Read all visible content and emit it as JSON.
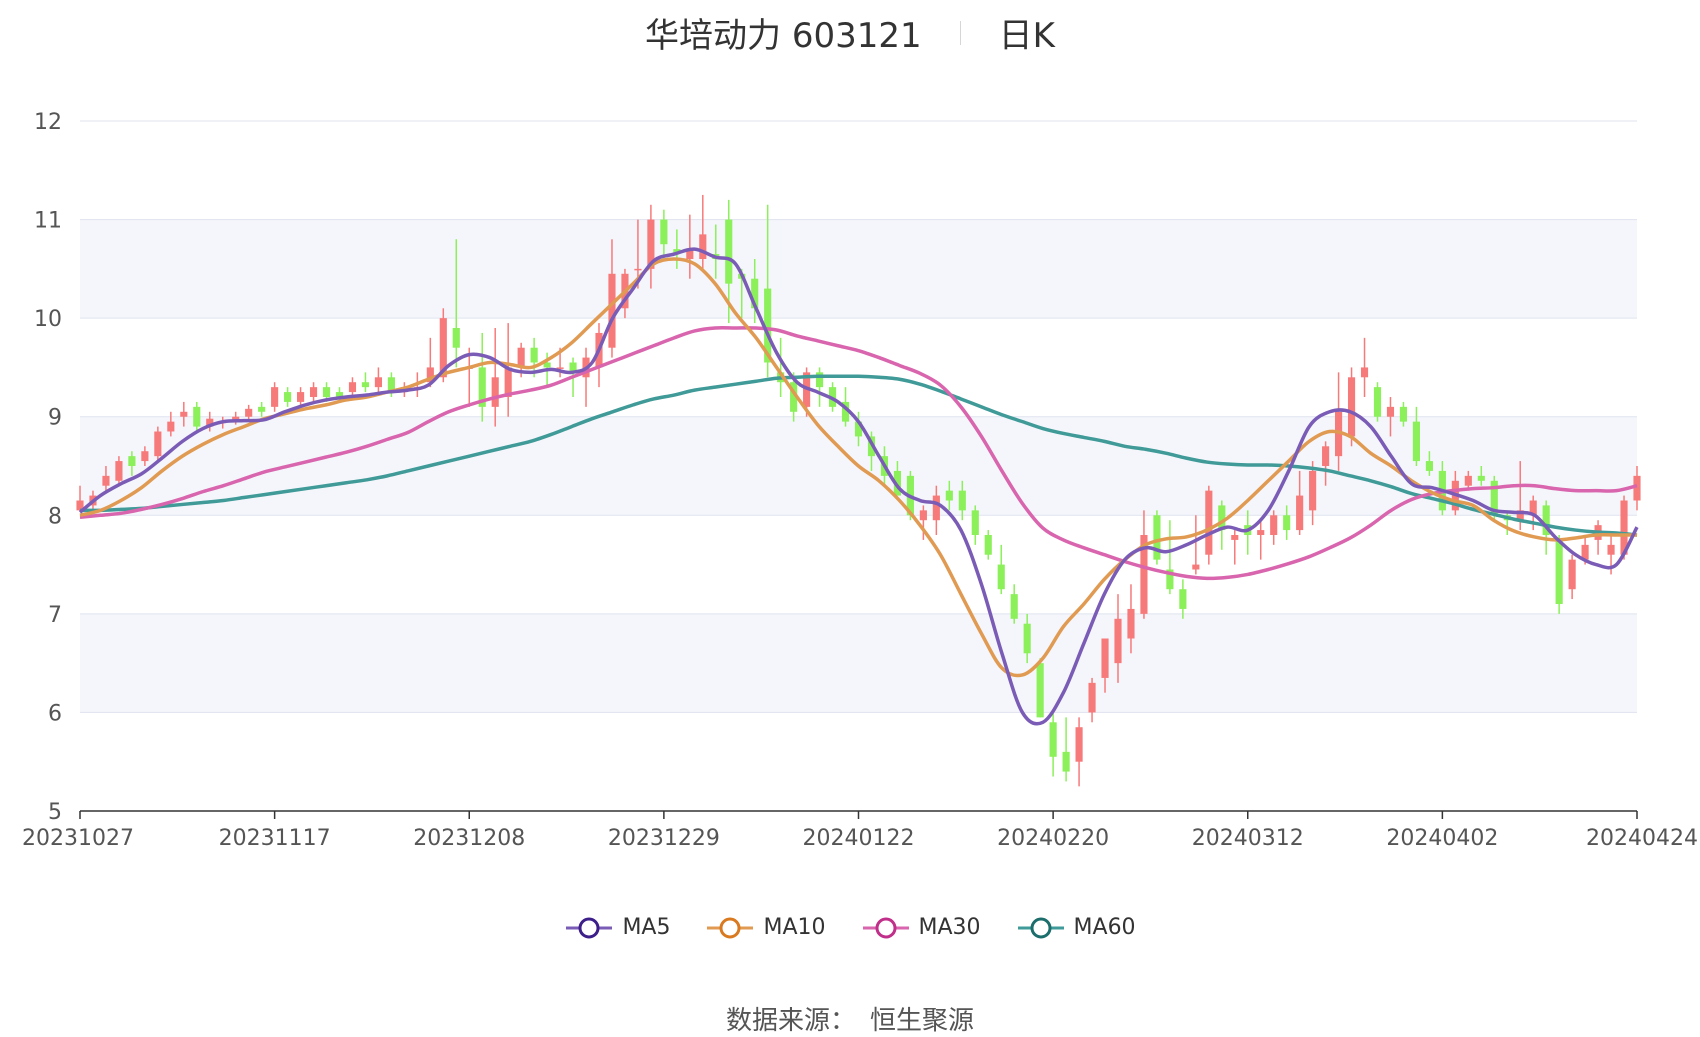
{
  "header": {
    "title": "华培动力 603121",
    "period": "日K"
  },
  "source": {
    "label": "数据来源：",
    "value": "恒生聚源"
  },
  "colors": {
    "up": "#f77a7a",
    "down": "#8bf05a",
    "MA5": "#7a5cb6",
    "MA10": "#e09a52",
    "MA30": "#d865ad",
    "MA60": "#3f9a98"
  },
  "chart_data": {
    "type": "candlestick",
    "ylim": [
      5,
      12
    ],
    "yticks": [
      5,
      6,
      7,
      8,
      9,
      10,
      11,
      12
    ],
    "xticks": [
      "20231027",
      "20231117",
      "20231208",
      "20231229",
      "20240122",
      "20240220",
      "20240312",
      "20240402",
      "20240424"
    ],
    "grid": true,
    "legend": "bottom-center",
    "series": [
      {
        "name": "MA5",
        "values": [
          8.03,
          8.2,
          8.32,
          8.42,
          8.58,
          8.75,
          8.88,
          8.95,
          8.96,
          8.97,
          9.05,
          9.12,
          9.17,
          9.2,
          9.22,
          9.25,
          9.27,
          9.32,
          9.52,
          9.63,
          9.6,
          9.48,
          9.45,
          9.48,
          9.45,
          9.55,
          10.0,
          10.3,
          10.58,
          10.65,
          10.7,
          10.62,
          10.55,
          10.1,
          9.65,
          9.35,
          9.25,
          9.15,
          8.95,
          8.6,
          8.27,
          8.15,
          8.1,
          7.85,
          7.3,
          6.6,
          6.0,
          5.9,
          6.2,
          6.7,
          7.2,
          7.55,
          7.67,
          7.63,
          7.7,
          7.8,
          7.88,
          7.85,
          8.05,
          8.45,
          8.9,
          9.05,
          9.05,
          8.9,
          8.6,
          8.32,
          8.28,
          8.22,
          8.15,
          8.05,
          8.03,
          8.0,
          7.78,
          7.6,
          7.5,
          7.5,
          7.88
        ]
      },
      {
        "name": "MA10",
        "values": [
          8.0,
          8.05,
          8.15,
          8.28,
          8.45,
          8.6,
          8.72,
          8.82,
          8.9,
          8.98,
          9.03,
          9.08,
          9.12,
          9.17,
          9.2,
          9.25,
          9.3,
          9.38,
          9.45,
          9.5,
          9.55,
          9.53,
          9.5,
          9.6,
          9.75,
          9.95,
          10.15,
          10.35,
          10.55,
          10.6,
          10.55,
          10.35,
          10.05,
          9.8,
          9.5,
          9.2,
          8.92,
          8.7,
          8.5,
          8.35,
          8.15,
          7.9,
          7.6,
          7.2,
          6.8,
          6.45,
          6.38,
          6.55,
          6.87,
          7.1,
          7.35,
          7.55,
          7.7,
          7.76,
          7.78,
          7.85,
          7.97,
          8.15,
          8.35,
          8.55,
          8.75,
          8.85,
          8.8,
          8.63,
          8.5,
          8.35,
          8.23,
          8.15,
          8.1,
          7.95,
          7.84,
          7.78,
          7.75,
          7.77,
          7.8,
          7.8,
          7.8
        ]
      },
      {
        "name": "MA30",
        "values": [
          7.98,
          8.0,
          8.02,
          8.06,
          8.11,
          8.17,
          8.24,
          8.3,
          8.37,
          8.44,
          8.49,
          8.54,
          8.59,
          8.64,
          8.7,
          8.77,
          8.84,
          8.95,
          9.05,
          9.12,
          9.18,
          9.23,
          9.27,
          9.32,
          9.4,
          9.48,
          9.56,
          9.64,
          9.72,
          9.8,
          9.87,
          9.9,
          9.9,
          9.9,
          9.88,
          9.82,
          9.77,
          9.72,
          9.67,
          9.6,
          9.52,
          9.44,
          9.32,
          9.1,
          8.8,
          8.45,
          8.12,
          7.87,
          7.75,
          7.67,
          7.6,
          7.53,
          7.47,
          7.42,
          7.38,
          7.36,
          7.37,
          7.4,
          7.45,
          7.51,
          7.58,
          7.67,
          7.77,
          7.9,
          8.05,
          8.16,
          8.22,
          8.25,
          8.27,
          8.28,
          8.3,
          8.3,
          8.27,
          8.25,
          8.25,
          8.25,
          8.3
        ]
      },
      {
        "name": "MA60",
        "values": [
          8.05,
          8.05,
          8.06,
          8.07,
          8.09,
          8.11,
          8.13,
          8.15,
          8.18,
          8.21,
          8.24,
          8.27,
          8.3,
          8.33,
          8.36,
          8.4,
          8.45,
          8.5,
          8.55,
          8.6,
          8.65,
          8.7,
          8.75,
          8.82,
          8.9,
          8.98,
          9.05,
          9.12,
          9.18,
          9.22,
          9.27,
          9.3,
          9.33,
          9.36,
          9.39,
          9.4,
          9.41,
          9.41,
          9.41,
          9.4,
          9.38,
          9.33,
          9.26,
          9.18,
          9.1,
          9.02,
          8.95,
          8.88,
          8.83,
          8.79,
          8.75,
          8.7,
          8.67,
          8.63,
          8.58,
          8.54,
          8.52,
          8.51,
          8.51,
          8.5,
          8.48,
          8.45,
          8.4,
          8.35,
          8.29,
          8.22,
          8.17,
          8.12,
          8.06,
          8.01,
          7.96,
          7.92,
          7.88,
          7.85,
          7.83,
          7.82,
          7.8
        ]
      }
    ],
    "candles": [
      [
        8.05,
        8.15,
        8.3,
        8.05
      ],
      [
        8.1,
        8.2,
        8.25,
        8.05
      ],
      [
        8.3,
        8.4,
        8.5,
        8.25
      ],
      [
        8.35,
        8.55,
        8.6,
        8.3
      ],
      [
        8.6,
        8.5,
        8.65,
        8.4
      ],
      [
        8.55,
        8.65,
        8.7,
        8.5
      ],
      [
        8.6,
        8.85,
        8.9,
        8.55
      ],
      [
        8.85,
        8.95,
        9.05,
        8.8
      ],
      [
        9.0,
        9.05,
        9.15,
        8.9
      ],
      [
        9.1,
        8.9,
        9.15,
        8.85
      ],
      [
        8.9,
        8.98,
        9.05,
        8.85
      ],
      [
        8.95,
        8.95,
        9.0,
        8.88
      ],
      [
        8.96,
        9.0,
        9.05,
        8.92
      ],
      [
        9.0,
        9.08,
        9.12,
        8.95
      ],
      [
        9.1,
        9.05,
        9.15,
        9.0
      ],
      [
        9.1,
        9.3,
        9.35,
        9.05
      ],
      [
        9.25,
        9.15,
        9.3,
        9.1
      ],
      [
        9.15,
        9.25,
        9.3,
        9.1
      ],
      [
        9.2,
        9.3,
        9.35,
        9.15
      ],
      [
        9.3,
        9.2,
        9.35,
        9.15
      ],
      [
        9.25,
        9.2,
        9.3,
        9.15
      ],
      [
        9.25,
        9.35,
        9.4,
        9.2
      ],
      [
        9.35,
        9.3,
        9.45,
        9.25
      ],
      [
        9.3,
        9.4,
        9.5,
        9.25
      ],
      [
        9.4,
        9.25,
        9.45,
        9.2
      ],
      [
        9.25,
        9.3,
        9.35,
        9.2
      ],
      [
        9.3,
        9.3,
        9.45,
        9.2
      ],
      [
        9.35,
        9.5,
        9.8,
        9.3
      ],
      [
        9.4,
        10.0,
        10.1,
        9.35
      ],
      [
        9.9,
        9.7,
        10.8,
        9.5
      ],
      [
        9.5,
        9.5,
        9.7,
        9.1
      ],
      [
        9.5,
        9.1,
        9.85,
        8.95
      ],
      [
        9.1,
        9.4,
        9.9,
        8.9
      ],
      [
        9.2,
        9.5,
        9.95,
        9.0
      ],
      [
        9.5,
        9.7,
        9.75,
        9.4
      ],
      [
        9.7,
        9.55,
        9.8,
        9.4
      ],
      [
        9.55,
        9.5,
        9.65,
        9.3
      ],
      [
        9.5,
        9.5,
        9.7,
        9.4
      ],
      [
        9.55,
        9.45,
        9.6,
        9.2
      ],
      [
        9.4,
        9.6,
        9.7,
        9.1
      ],
      [
        9.5,
        9.85,
        9.95,
        9.3
      ],
      [
        9.7,
        10.45,
        10.8,
        9.6
      ],
      [
        10.1,
        10.45,
        10.5,
        10.0
      ],
      [
        10.5,
        10.5,
        11.0,
        10.3
      ],
      [
        10.5,
        11.0,
        11.15,
        10.3
      ],
      [
        11.0,
        10.75,
        11.1,
        10.6
      ],
      [
        10.7,
        10.65,
        10.9,
        10.5
      ],
      [
        10.6,
        10.7,
        11.05,
        10.4
      ],
      [
        10.6,
        10.85,
        11.25,
        10.5
      ],
      [
        10.65,
        10.6,
        10.95,
        10.4
      ],
      [
        11.0,
        10.35,
        11.2,
        9.95
      ],
      [
        10.45,
        10.4,
        10.5,
        10.0
      ],
      [
        10.4,
        10.1,
        10.6,
        9.95
      ],
      [
        10.3,
        9.55,
        11.15,
        9.4
      ],
      [
        9.45,
        9.35,
        9.8,
        9.2
      ],
      [
        9.35,
        9.05,
        9.45,
        8.95
      ],
      [
        9.1,
        9.45,
        9.5,
        9.0
      ],
      [
        9.45,
        9.3,
        9.5,
        9.1
      ],
      [
        9.3,
        9.1,
        9.35,
        9.05
      ],
      [
        9.15,
        8.95,
        9.3,
        8.9
      ],
      [
        8.95,
        8.8,
        9.05,
        8.7
      ],
      [
        8.8,
        8.6,
        8.85,
        8.45
      ],
      [
        8.6,
        8.4,
        8.7,
        8.3
      ],
      [
        8.45,
        8.2,
        8.55,
        8.2
      ],
      [
        8.4,
        8.0,
        8.45,
        7.95
      ],
      [
        7.95,
        8.05,
        8.1,
        7.75
      ],
      [
        7.95,
        8.2,
        8.3,
        7.8
      ],
      [
        8.25,
        8.15,
        8.35,
        8.05
      ],
      [
        8.25,
        8.05,
        8.35,
        7.95
      ],
      [
        8.05,
        7.8,
        8.1,
        7.7
      ],
      [
        7.8,
        7.6,
        7.85,
        7.55
      ],
      [
        7.5,
        7.25,
        7.7,
        7.2
      ],
      [
        7.2,
        6.95,
        7.3,
        6.9
      ],
      [
        6.9,
        6.6,
        7.0,
        6.5
      ],
      [
        6.5,
        5.95,
        6.55,
        5.95
      ],
      [
        5.9,
        5.55,
        6.0,
        5.35
      ],
      [
        5.6,
        5.4,
        5.95,
        5.3
      ],
      [
        5.5,
        5.85,
        5.95,
        5.25
      ],
      [
        6.0,
        6.3,
        6.35,
        5.9
      ],
      [
        6.35,
        6.75,
        6.75,
        6.2
      ],
      [
        6.5,
        6.95,
        7.2,
        6.3
      ],
      [
        6.75,
        7.05,
        7.3,
        6.6
      ],
      [
        7.0,
        7.8,
        8.05,
        6.95
      ],
      [
        8.0,
        7.55,
        8.05,
        7.5
      ],
      [
        7.45,
        7.25,
        7.95,
        7.2
      ],
      [
        7.25,
        7.05,
        7.35,
        6.95
      ],
      [
        7.45,
        7.5,
        8.0,
        7.4
      ],
      [
        7.6,
        8.25,
        8.3,
        7.5
      ],
      [
        8.1,
        7.85,
        8.15,
        7.65
      ],
      [
        7.75,
        7.8,
        7.85,
        7.5
      ],
      [
        7.9,
        7.8,
        8.05,
        7.6
      ],
      [
        7.8,
        7.85,
        7.95,
        7.55
      ],
      [
        7.8,
        8.0,
        8.05,
        7.7
      ],
      [
        8.0,
        7.85,
        8.1,
        7.75
      ],
      [
        7.85,
        8.2,
        8.45,
        7.8
      ],
      [
        8.05,
        8.45,
        8.55,
        7.9
      ],
      [
        8.5,
        8.7,
        8.75,
        8.3
      ],
      [
        8.6,
        9.05,
        9.45,
        8.45
      ],
      [
        8.8,
        9.4,
        9.5,
        8.7
      ],
      [
        9.4,
        9.5,
        9.8,
        9.2
      ],
      [
        9.3,
        9.0,
        9.35,
        8.95
      ],
      [
        9.0,
        9.1,
        9.2,
        8.8
      ],
      [
        9.1,
        8.95,
        9.15,
        8.9
      ],
      [
        8.95,
        8.55,
        9.1,
        8.5
      ],
      [
        8.55,
        8.45,
        8.65,
        8.4
      ],
      [
        8.45,
        8.05,
        8.55,
        8.0
      ],
      [
        8.05,
        8.35,
        8.45,
        8.0
      ],
      [
        8.3,
        8.4,
        8.45,
        8.25
      ],
      [
        8.4,
        8.35,
        8.5,
        8.3
      ],
      [
        8.35,
        8.0,
        8.4,
        7.95
      ],
      [
        8.0,
        7.95,
        8.05,
        7.8
      ],
      [
        7.95,
        8.05,
        8.55,
        7.85
      ],
      [
        8.0,
        8.15,
        8.2,
        7.85
      ],
      [
        8.1,
        7.8,
        8.15,
        7.6
      ],
      [
        7.75,
        7.1,
        7.8,
        7.0
      ],
      [
        7.25,
        7.55,
        7.6,
        7.15
      ],
      [
        7.55,
        7.7,
        7.8,
        7.5
      ],
      [
        7.75,
        7.9,
        7.95,
        7.6
      ],
      [
        7.6,
        7.7,
        7.8,
        7.4
      ],
      [
        7.6,
        8.15,
        8.2,
        7.55
      ],
      [
        8.15,
        8.4,
        8.5,
        8.05
      ]
    ]
  }
}
